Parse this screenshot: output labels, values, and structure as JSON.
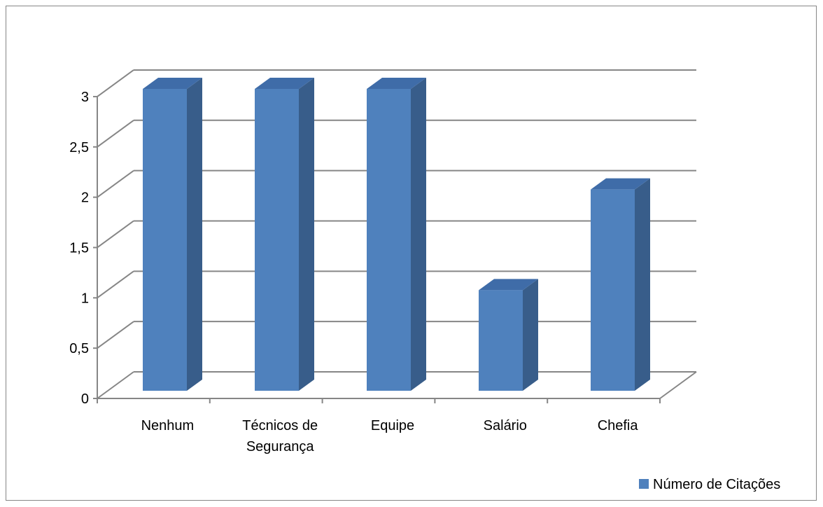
{
  "chart_data": {
    "type": "bar",
    "style": "3d-column",
    "categories": [
      [
        "Nenhum"
      ],
      [
        "Técnicos de",
        "Segurança"
      ],
      [
        "Equipe"
      ],
      [
        "Salário"
      ],
      [
        "Chefia"
      ]
    ],
    "series": [
      {
        "name": "Número de Citações",
        "values": [
          3,
          3,
          3,
          1,
          2
        ]
      }
    ],
    "yticks": [
      "0",
      "0,5",
      "1",
      "1,5",
      "2",
      "2,5",
      "3"
    ],
    "ylim": [
      0,
      3
    ],
    "grid": true,
    "legend": {
      "position": "bottom-right"
    },
    "colors": {
      "bar_front": "#4F81BD",
      "bar_side": "#385D8A",
      "bar_top": "#3F6CA8",
      "grid": "#868686"
    }
  }
}
